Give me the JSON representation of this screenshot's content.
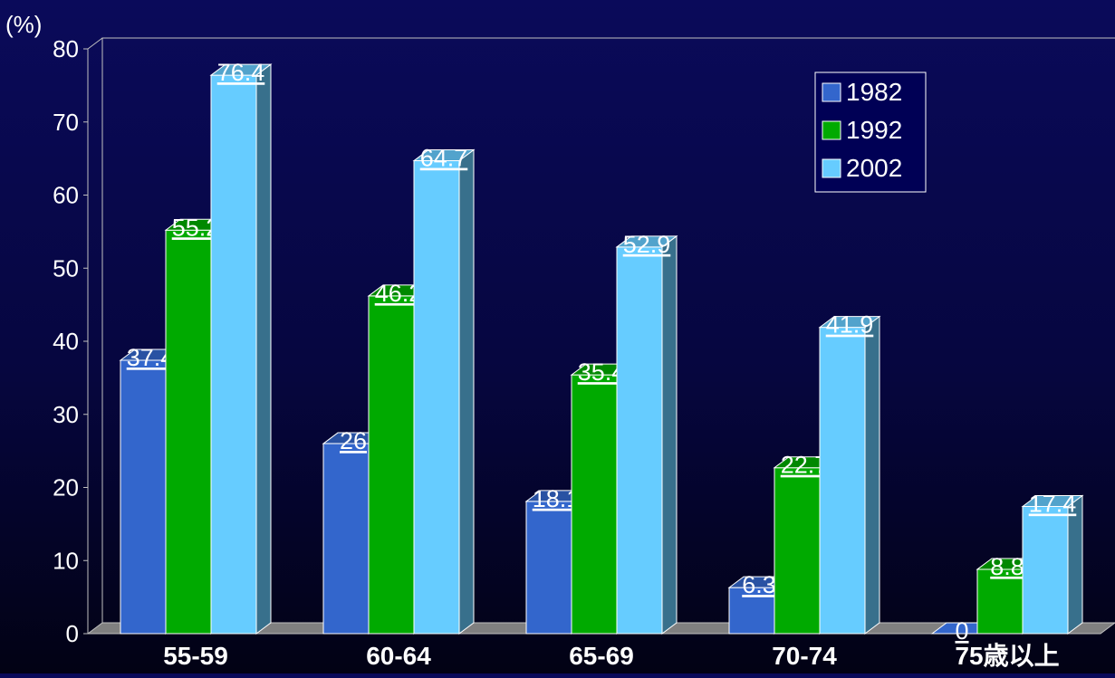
{
  "chart_data": {
    "type": "bar",
    "ylabel": "(%)",
    "ylim": [
      0,
      80
    ],
    "yticks": [
      0,
      10,
      20,
      30,
      40,
      50,
      60,
      70,
      80
    ],
    "categories": [
      "55-59",
      "60-64",
      "65-69",
      "70-74",
      "75歳以上"
    ],
    "series": [
      {
        "name": "1982",
        "color": "#3366cc",
        "values": [
          37.4,
          26,
          18.1,
          6.3,
          0
        ]
      },
      {
        "name": "1992",
        "color": "#00aa00",
        "values": [
          55.2,
          46.2,
          35.4,
          22.7,
          8.8
        ]
      },
      {
        "name": "2002",
        "color": "#66ccff",
        "values": [
          76.4,
          64.7,
          52.9,
          41.9,
          17.4
        ]
      }
    ],
    "legend_position": "top-right",
    "bar_style": "3d",
    "grid": false
  }
}
